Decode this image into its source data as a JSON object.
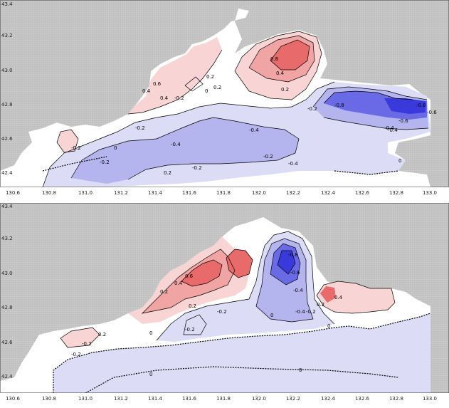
{
  "figure": {
    "panels": [
      {
        "name": "top",
        "x_ticks": [
          "130.6",
          "130.8",
          "131.0",
          "131.2",
          "131.4",
          "131.6",
          "131.8",
          "132.0",
          "132.2",
          "132.4",
          "132.6",
          "132.8",
          "133.0"
        ],
        "y_ticks": [
          "43.4",
          "43.2",
          "43.0",
          "42.8",
          "42.6",
          "42.4"
        ],
        "contour_labels": [
          "-0.8",
          "-0.6",
          "-0.4",
          "-0.2",
          "0",
          "-0.2",
          "-0.4",
          "-0.4",
          "-0.2",
          "0.2",
          "0.4",
          "0.6",
          "0.8",
          "0.4",
          "0.2",
          "0",
          "-0.2",
          "-0.6",
          "-0.8",
          "-0.4",
          "-0.2",
          "0.4",
          "0.2",
          "-0.2",
          "-0.4",
          "0",
          "0.2",
          "-0.2"
        ]
      },
      {
        "name": "bottom",
        "x_ticks": [
          "130.6",
          "130.8",
          "131.0",
          "131.2",
          "131.4",
          "131.6",
          "131.8",
          "132.0",
          "132.2",
          "132.4",
          "132.6",
          "132.8",
          "133.0"
        ],
        "y_ticks": [
          "43.4",
          "43.2",
          "43.0",
          "42.8",
          "42.6",
          "42.4"
        ],
        "contour_labels": [
          "-0.2",
          "0.2",
          "0.4",
          "0.6",
          "0.2",
          "-0.2",
          "-0.8",
          "-0.6",
          "-0.4",
          "-0.2",
          "-0.4",
          "0",
          "0.2",
          "0.4",
          "0",
          "-0.2",
          "0",
          "0.2",
          "0",
          "0",
          "-0.2"
        ]
      }
    ],
    "colors": {
      "land": "#c4c4c4",
      "sea": "#ffffff",
      "positive_light": "#f8d4d4",
      "positive_mid": "#f0a4a4",
      "positive_strong": "#e86a6a",
      "negative_light": "#dcdcf6",
      "negative_mid": "#b4b4ee",
      "negative_strong": "#6a6ae6",
      "negative_deep": "#3a3adc"
    }
  }
}
